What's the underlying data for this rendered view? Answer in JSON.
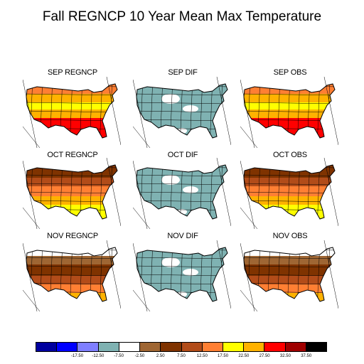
{
  "title": "Fall REGNCP 10 Year Mean Max Temperature",
  "panels": [
    {
      "label": "SEP REGNCP",
      "field": "model",
      "month": "SEP"
    },
    {
      "label": "SEP DIF",
      "field": "diff",
      "month": "SEP"
    },
    {
      "label": "SEP OBS",
      "field": "obs",
      "month": "SEP"
    },
    {
      "label": "OCT REGNCP",
      "field": "model",
      "month": "OCT"
    },
    {
      "label": "OCT DIF",
      "field": "diff",
      "month": "OCT"
    },
    {
      "label": "OCT OBS",
      "field": "obs",
      "month": "OCT"
    },
    {
      "label": "NOV REGNCP",
      "field": "model",
      "month": "NOV"
    },
    {
      "label": "NOV DIF",
      "field": "diff",
      "month": "NOV"
    },
    {
      "label": "NOV OBS",
      "field": "obs",
      "month": "NOV"
    }
  ],
  "colorbar": {
    "colors": [
      "#00009f",
      "#0000ff",
      "#7f7fff",
      "#7fb2b2",
      "#ffffff",
      "#9f6633",
      "#7f3300",
      "#b24c19",
      "#ff7f33",
      "#ffff00",
      "#ffb200",
      "#ff0000",
      "#9f0000",
      "#000000"
    ],
    "tick_labels": [
      "-17.50",
      "-12.50",
      "-7.50",
      "-2.50",
      "2.50",
      "7.50",
      "12.50",
      "17.50",
      "22.50",
      "27.50",
      "32.50",
      "37.50"
    ]
  },
  "colors": {
    "outline": "#000000",
    "diff_fill": "#7fb2b2",
    "north_warm_model": "#b24c19",
    "mid_warm": "#ff7f33",
    "warm": "#ffb200",
    "yellow": "#ffff00",
    "hot": "#ff0000",
    "very_hot": "#9f0000",
    "brown": "#7f3300",
    "light_brown": "#9f6633",
    "white": "#ffffff"
  }
}
